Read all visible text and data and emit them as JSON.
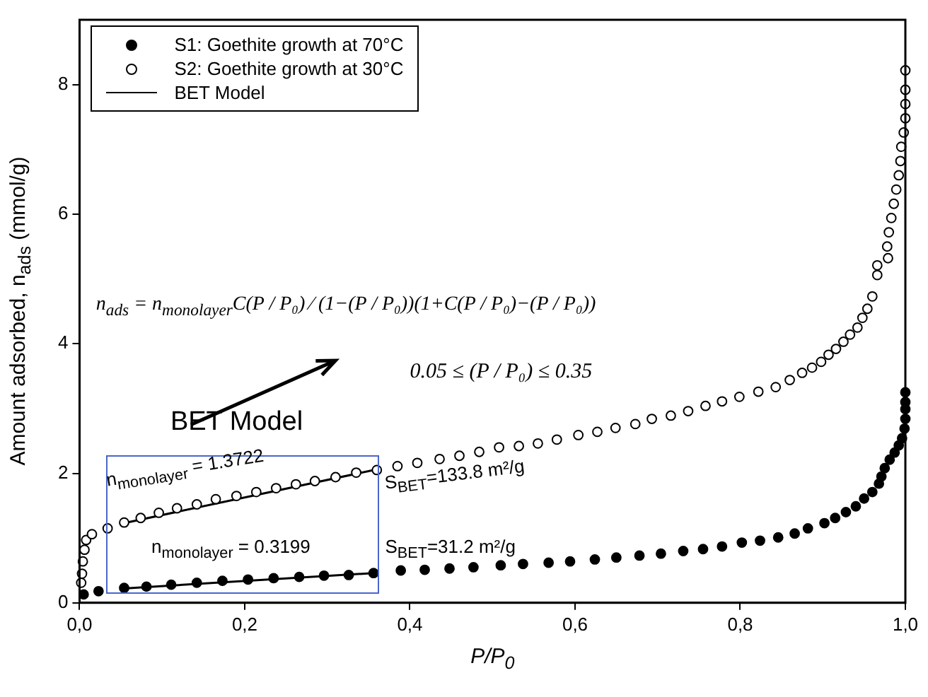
{
  "chart_data": {
    "type": "scatter",
    "xlabel": "P/P$_{0}$",
    "ylabel": "Amount adsorbed, n$_{ads}$ (mmol/g)",
    "xlim": [
      0,
      1
    ],
    "ylim": [
      0,
      9
    ],
    "xticks": [
      {
        "value": 0,
        "label": "0,0"
      },
      {
        "value": 0.2,
        "label": "0,2"
      },
      {
        "value": 0.4,
        "label": "0,4"
      },
      {
        "value": 0.6,
        "label": "0,6"
      },
      {
        "value": 0.8,
        "label": "0,8"
      },
      {
        "value": 1,
        "label": "1,0"
      }
    ],
    "yticks": [
      0,
      2,
      4,
      6,
      8
    ],
    "grid": false,
    "legend": "top left",
    "series": [
      {
        "name": "S1: Goethite growth at 70°C",
        "color": "#000000",
        "marker": "circle",
        "x": [
          0.005,
          0.023,
          0.054,
          0.081,
          0.111,
          0.142,
          0.173,
          0.204,
          0.235,
          0.266,
          0.296,
          0.326,
          0.356,
          0.389,
          0.418,
          0.448,
          0.477,
          0.51,
          0.537,
          0.568,
          0.594,
          0.624,
          0.65,
          0.678,
          0.704,
          0.731,
          0.755,
          0.778,
          0.802,
          0.824,
          0.846,
          0.866,
          0.882,
          0.902,
          0.915,
          0.928,
          0.94,
          0.95,
          0.96,
          0.968,
          0.971,
          0.975,
          0.981,
          0.987,
          0.992,
          0.996,
          0.999,
          1,
          1,
          1,
          1
        ],
        "values": [
          0.13,
          0.18,
          0.23,
          0.25,
          0.28,
          0.31,
          0.34,
          0.36,
          0.38,
          0.4,
          0.42,
          0.43,
          0.46,
          0.5,
          0.51,
          0.53,
          0.55,
          0.58,
          0.6,
          0.62,
          0.64,
          0.67,
          0.7,
          0.73,
          0.76,
          0.8,
          0.83,
          0.87,
          0.93,
          0.96,
          1.01,
          1.07,
          1.15,
          1.23,
          1.31,
          1.4,
          1.49,
          1.61,
          1.71,
          1.84,
          1.95,
          2.08,
          2.21,
          2.32,
          2.43,
          2.54,
          2.69,
          2.84,
          2.99,
          3.1,
          3.25
        ]
      },
      {
        "name": "S2: Goethite growth at 30°C",
        "color": "#000000",
        "marker": "open circle",
        "x": [
          0.002,
          0.003,
          0.004,
          0.006,
          0.008,
          0.015,
          0.034,
          0.054,
          0.074,
          0.096,
          0.118,
          0.142,
          0.165,
          0.19,
          0.214,
          0.238,
          0.262,
          0.285,
          0.31,
          0.335,
          0.36,
          0.385,
          0.409,
          0.436,
          0.46,
          0.484,
          0.508,
          0.532,
          0.555,
          0.578,
          0.604,
          0.627,
          0.649,
          0.673,
          0.693,
          0.716,
          0.737,
          0.758,
          0.778,
          0.799,
          0.822,
          0.843,
          0.86,
          0.875,
          0.887,
          0.898,
          0.907,
          0.916,
          0.925,
          0.933,
          0.942,
          0.948,
          0.954,
          0.96,
          0.966,
          0.966,
          0.978,
          0.979,
          0.98,
          0.983,
          0.986,
          0.989,
          0.992,
          0.994,
          0.995,
          0.998,
          1,
          1,
          1,
          1
        ],
        "values": [
          0.31,
          0.45,
          0.64,
          0.82,
          0.97,
          1.06,
          1.15,
          1.24,
          1.31,
          1.39,
          1.46,
          1.52,
          1.6,
          1.65,
          1.71,
          1.77,
          1.83,
          1.88,
          1.94,
          2.01,
          2.05,
          2.11,
          2.16,
          2.22,
          2.27,
          2.33,
          2.4,
          2.42,
          2.46,
          2.52,
          2.59,
          2.64,
          2.7,
          2.76,
          2.84,
          2.89,
          2.96,
          3.04,
          3.11,
          3.18,
          3.26,
          3.33,
          3.44,
          3.55,
          3.63,
          3.72,
          3.83,
          3.92,
          4.03,
          4.14,
          4.25,
          4.4,
          4.54,
          4.73,
          5.06,
          5.21,
          5.5,
          5.32,
          5.72,
          5.94,
          6.16,
          6.38,
          6.6,
          6.82,
          7.04,
          7.26,
          7.48,
          7.7,
          7.92,
          8.22
        ]
      },
      {
        "name": "BET Model",
        "type": "line",
        "color": "#000000",
        "marker": "none",
        "x": [
          0.05,
          0.356
        ],
        "values": [
          0.22,
          0.46
        ]
      },
      {
        "type": "line",
        "color": "#000000",
        "marker": "none",
        "x": [
          0.05,
          0.36
        ],
        "values": [
          1.22,
          2.06
        ]
      }
    ],
    "annotations": [
      "n$_{ads}$ = n$_{monolayer}$C(P / P₀) ⁄ (1−(P / P₀))(1+C(P / P₀)−(P / P₀))",
      "0.05 ≤ (P / P₀) ≤ 0.35",
      "BET Model",
      "n$_{monolayer}$ = 1.3722",
      "n$_{monolayer}$ = 0.3199",
      "S$_{BET}$=133.8 m²/g",
      "S$_{BET}$=31.2 m²/g"
    ]
  }
}
